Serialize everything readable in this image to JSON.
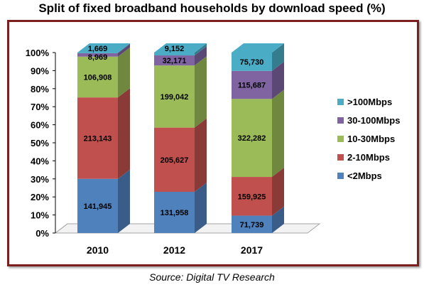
{
  "chart_data": {
    "type": "bar",
    "stacked": "100%",
    "title": "Split of fixed broadband households by download speed (%)",
    "source": "Source: Digital TV Research",
    "categories": [
      "2010",
      "2012",
      "2017"
    ],
    "series": [
      {
        "name": "<2Mbps",
        "color": "#4f81bd",
        "values": [
          141945,
          131958,
          71739
        ],
        "labels": [
          "141,945",
          "131,958",
          "71,739"
        ]
      },
      {
        "name": "2-10Mbps",
        "color": "#c0504d",
        "values": [
          213143,
          205627,
          159925
        ],
        "labels": [
          "213,143",
          "205,627",
          "159,925"
        ]
      },
      {
        "name": "10-30Mbps",
        "color": "#9bbb59",
        "values": [
          106908,
          199042,
          322282
        ],
        "labels": [
          "106,908",
          "199,042",
          "322,282"
        ]
      },
      {
        "name": "30-100Mbps",
        "color": "#8064a2",
        "values": [
          8969,
          32171,
          115687
        ],
        "labels": [
          "8,969",
          "32,171",
          "115,687"
        ]
      },
      {
        "name": ">100Mbps",
        "color": "#4bacc6",
        "values": [
          1669,
          9152,
          75730
        ],
        "labels": [
          "1,669",
          "9,152",
          "75,730"
        ]
      }
    ],
    "y_ticks": [
      "0%",
      "10%",
      "20%",
      "30%",
      "40%",
      "50%",
      "60%",
      "70%",
      "80%",
      "90%",
      "100%"
    ],
    "ylim": [
      0,
      100
    ],
    "legend_position": "right"
  }
}
